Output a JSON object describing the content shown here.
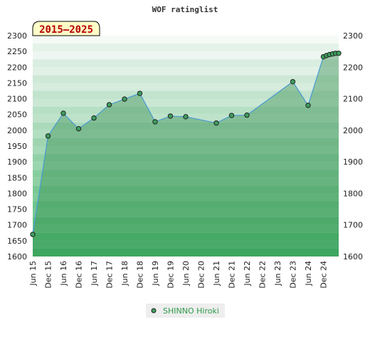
{
  "chart_data": {
    "type": "area",
    "title": "WOF ratinglist",
    "badge": "2015–2025",
    "y_left_ticks": [
      "2300",
      "2250",
      "2200",
      "2150",
      "2100",
      "2050",
      "2000",
      "1950",
      "1900",
      "1850",
      "1800",
      "1750",
      "1700",
      "1650",
      "1600"
    ],
    "y_right_ticks": [
      "2300",
      "2200",
      "2100",
      "2000",
      "1900",
      "1800",
      "1700",
      "1600"
    ],
    "ylim": [
      1600,
      2300
    ],
    "x_ticks": [
      "Jun 15",
      "Dec 15",
      "Jun 16",
      "Dec 16",
      "Jun 17",
      "Dec 17",
      "Jun 18",
      "Dec 18",
      "Jun 19",
      "Dec 19",
      "Jun 20",
      "Dec 20",
      "Jun 21",
      "Dec 21",
      "Jun 22",
      "Dec 22",
      "Jun 23",
      "Dec 23",
      "Jun 24",
      "Dec 24"
    ],
    "series": [
      {
        "name": "SHINNO Hiroki",
        "color": "#4a9ad4",
        "marker_color": "#3d9e5e",
        "points": [
          {
            "x": 0,
            "y": 1670
          },
          {
            "x": 1,
            "y": 1982
          },
          {
            "x": 2,
            "y": 2054
          },
          {
            "x": 3,
            "y": 2005
          },
          {
            "x": 4,
            "y": 2039
          },
          {
            "x": 5,
            "y": 2081
          },
          {
            "x": 6,
            "y": 2099
          },
          {
            "x": 7,
            "y": 2117
          },
          {
            "x": 8,
            "y": 2027
          },
          {
            "x": 9,
            "y": 2045
          },
          {
            "x": 10,
            "y": 2043
          },
          {
            "x": 12,
            "y": 2023
          },
          {
            "x": 13,
            "y": 2047
          },
          {
            "x": 14,
            "y": 2048
          },
          {
            "x": 17,
            "y": 2154
          },
          {
            "x": 18,
            "y": 2079
          },
          {
            "x": 19,
            "y": 2233
          },
          {
            "x": 19.2,
            "y": 2237
          },
          {
            "x": 19.4,
            "y": 2240
          },
          {
            "x": 19.6,
            "y": 2242
          },
          {
            "x": 19.8,
            "y": 2244
          },
          {
            "x": 20,
            "y": 2244
          }
        ]
      }
    ],
    "legend_position": "bottom-center",
    "grid": true
  }
}
